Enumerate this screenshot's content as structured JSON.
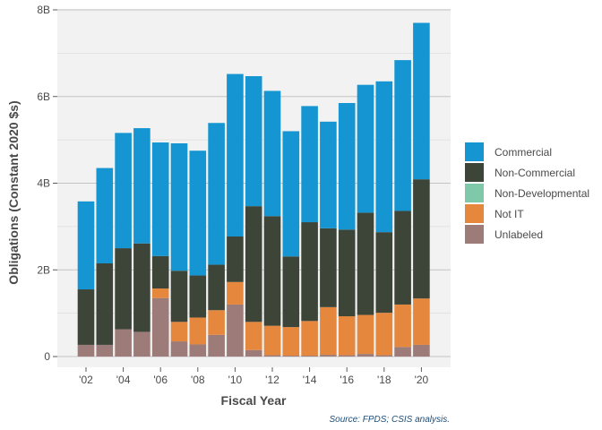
{
  "chart_data": {
    "type": "bar",
    "stacked": true,
    "xlabel": "Fiscal Year",
    "ylabel": "Obligations (Constant 2020 $s)",
    "caption": "Source: FPDS; CSIS analysis.",
    "ylim": [
      0,
      8
    ],
    "y_ticks": [
      0,
      2,
      4,
      6,
      8
    ],
    "y_tick_labels": [
      "0",
      "2B",
      "4B",
      "6B",
      "8B"
    ],
    "x_tick_labels": [
      {
        "year": 2002,
        "label": "'02"
      },
      {
        "year": 2004,
        "label": "'04"
      },
      {
        "year": 2006,
        "label": "'06"
      },
      {
        "year": 2008,
        "label": "'08"
      },
      {
        "year": 2010,
        "label": "'10"
      },
      {
        "year": 2012,
        "label": "'12"
      },
      {
        "year": 2014,
        "label": "'14"
      },
      {
        "year": 2016,
        "label": "'16"
      },
      {
        "year": 2018,
        "label": "'18"
      },
      {
        "year": 2020,
        "label": "'20"
      }
    ],
    "x": [
      2002,
      2003,
      2004,
      2005,
      2006,
      2007,
      2008,
      2009,
      2010,
      2011,
      2012,
      2013,
      2014,
      2015,
      2016,
      2017,
      2018,
      2019,
      2020
    ],
    "legend_position": "right",
    "grid": true,
    "series": [
      {
        "name": "Unlabeled",
        "color": "#9c7b78",
        "values": [
          0.27,
          0.27,
          0.63,
          0.57,
          1.35,
          0.35,
          0.28,
          0.5,
          1.2,
          0.15,
          0.03,
          0.02,
          0.02,
          0.04,
          0.03,
          0.06,
          0.03,
          0.22,
          0.27
        ]
      },
      {
        "name": "Not IT",
        "color": "#e5873d",
        "values": [
          0.0,
          0.0,
          0.0,
          0.0,
          0.22,
          0.45,
          0.62,
          0.57,
          0.52,
          0.65,
          0.68,
          0.66,
          0.8,
          1.1,
          0.9,
          0.9,
          0.98,
          0.98,
          1.07
        ]
      },
      {
        "name": "Non-Developmental",
        "color": "#7fc8a9",
        "values": [
          0,
          0,
          0,
          0,
          0,
          0,
          0,
          0,
          0,
          0,
          0,
          0,
          0,
          0,
          0,
          0,
          0,
          0,
          0
        ]
      },
      {
        "name": "Non-Commercial",
        "color": "#3d4539",
        "values": [
          1.28,
          1.88,
          1.87,
          2.04,
          0.75,
          1.18,
          0.97,
          1.05,
          1.05,
          2.67,
          2.53,
          1.63,
          2.28,
          1.82,
          2.0,
          2.36,
          1.86,
          2.16,
          2.75
        ]
      },
      {
        "name": "Commercial",
        "color": "#1596d2",
        "values": [
          2.03,
          2.2,
          2.66,
          2.66,
          2.62,
          2.94,
          2.88,
          3.27,
          3.75,
          3.0,
          2.89,
          2.89,
          2.68,
          2.46,
          2.92,
          2.95,
          3.48,
          3.48,
          3.61
        ]
      }
    ],
    "legend_order": [
      "Commercial",
      "Non-Commercial",
      "Non-Developmental",
      "Not IT",
      "Unlabeled"
    ]
  }
}
